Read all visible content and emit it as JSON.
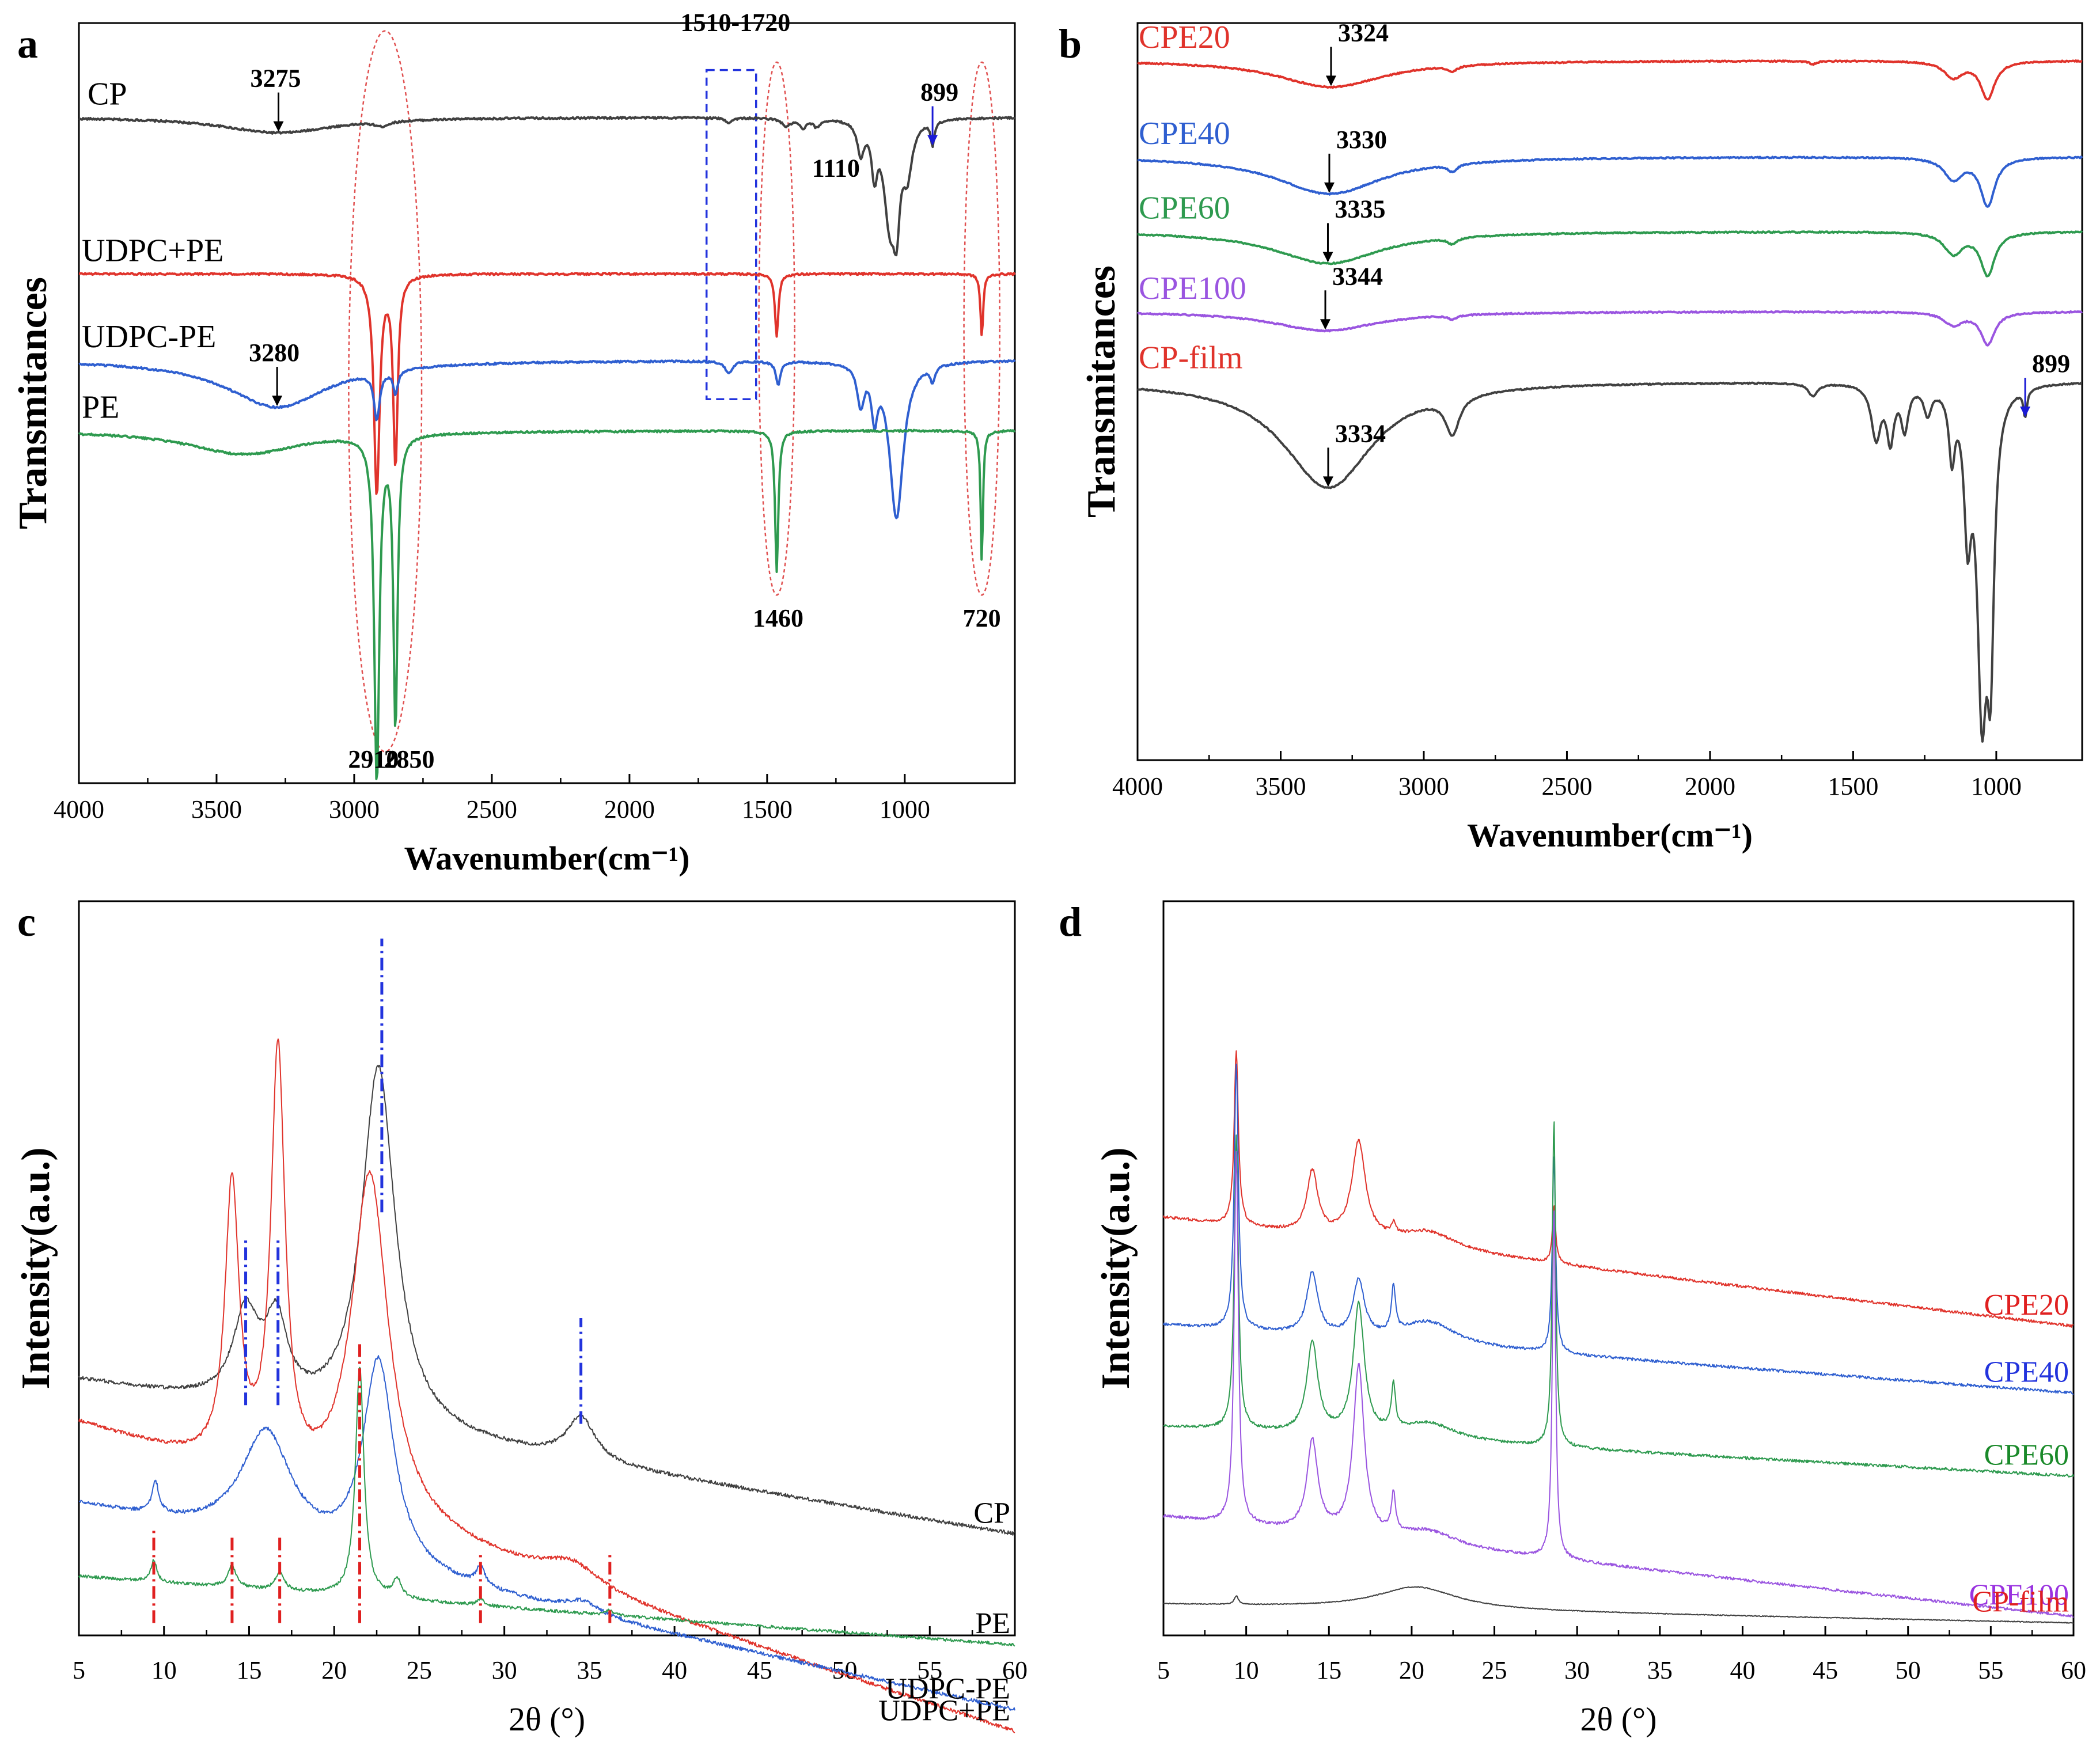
{
  "figure": {
    "panel_labels": [
      "a",
      "b",
      "c",
      "d"
    ]
  },
  "chart_data": [
    {
      "panel": "a",
      "type": "line",
      "xlabel": "Wavenumber(cm⁻¹)",
      "ylabel": "Transmitances",
      "xlim": [
        4000,
        600
      ],
      "xticks": [
        4000,
        3500,
        3000,
        2500,
        2000,
        1500,
        1000
      ],
      "ylim": [
        -0.25,
        4.6
      ],
      "series": [
        {
          "name": "CP",
          "color": "#404040",
          "baseline": 4.0,
          "bands": [
            [
              3275,
              500,
              0.1
            ],
            [
              2900,
              60,
              0.03
            ],
            [
              1640,
              30,
              0.03
            ],
            [
              1430,
              40,
              0.05
            ],
            [
              1370,
              30,
              0.06
            ],
            [
              1320,
              30,
              0.05
            ],
            [
              1160,
              30,
              0.2
            ],
            [
              1110,
              25,
              0.3
            ],
            [
              1055,
              50,
              0.6
            ],
            [
              1030,
              30,
              0.5
            ],
            [
              990,
              40,
              0.3
            ],
            [
              899,
              15,
              0.15
            ]
          ]
        },
        {
          "name": "UDPC+PE",
          "color": "#e0332b",
          "baseline": 3.0,
          "bands": [
            [
              2918,
              25,
              1.4
            ],
            [
              2850,
              20,
              1.2
            ],
            [
              1465,
              15,
              0.4
            ],
            [
              720,
              12,
              0.4
            ]
          ]
        },
        {
          "name": "UDPC-PE",
          "color": "#2f5fd0",
          "baseline": 2.45,
          "bands": [
            [
              3280,
              450,
              0.3
            ],
            [
              2918,
              25,
              0.3
            ],
            [
              2850,
              20,
              0.15
            ],
            [
              1640,
              30,
              0.08
            ],
            [
              1460,
              20,
              0.15
            ],
            [
              1160,
              30,
              0.25
            ],
            [
              1110,
              25,
              0.3
            ],
            [
              1030,
              60,
              1.0
            ],
            [
              899,
              20,
              0.1
            ]
          ]
        },
        {
          "name": "PE",
          "color": "#2e9a4f",
          "baseline": 2.0,
          "bands": [
            [
              3400,
              500,
              0.15
            ],
            [
              2918,
              22,
              2.2
            ],
            [
              2850,
              18,
              1.85
            ],
            [
              1465,
              14,
              0.9
            ],
            [
              720,
              10,
              0.85
            ]
          ]
        }
      ],
      "annotations": [
        {
          "text": "3275",
          "x": 3275,
          "series": "CP",
          "arrow": "down",
          "color": "#000000"
        },
        {
          "text": "3280",
          "x": 3280,
          "series": "UDPC-PE",
          "arrow": "down",
          "color": "#000000"
        },
        {
          "text": "2910",
          "x": 2930,
          "y": -0.15,
          "arrow": "none",
          "color": "#000000"
        },
        {
          "text": "2850",
          "x": 2800,
          "y": -0.15,
          "arrow": "none",
          "color": "#000000"
        },
        {
          "text": "1510-1720",
          "x": 1615,
          "y": 4.55,
          "arrow": "none",
          "color": "#000000"
        },
        {
          "text": "1460",
          "x": 1460,
          "y": 0.75,
          "arrow": "none",
          "color": "#000000"
        },
        {
          "text": "1110",
          "x": 1250,
          "y": 3.62,
          "arrow": "none",
          "color": "#000000"
        },
        {
          "text": "899",
          "x": 899,
          "series": "CP",
          "arrow": "down",
          "color": "#1a1ad6"
        },
        {
          "text": "720",
          "x": 720,
          "y": 0.75,
          "arrow": "none",
          "color": "#000000"
        }
      ],
      "regions": [
        {
          "kind": "dashed-ellipse",
          "x1": 3020,
          "x2": 2755,
          "y1": -0.05,
          "y2": 4.55,
          "color": "#e05050"
        },
        {
          "kind": "dashed-ellipse",
          "x1": 1530,
          "x2": 1400,
          "y1": 0.95,
          "y2": 4.35,
          "color": "#e05050"
        },
        {
          "kind": "dashed-ellipse",
          "x1": 785,
          "x2": 655,
          "y1": 0.95,
          "y2": 4.35,
          "color": "#e05050"
        },
        {
          "kind": "dashed-rect",
          "x1": 1720,
          "x2": 1540,
          "y1": 2.2,
          "y2": 4.3,
          "color": "#2233dd"
        }
      ]
    },
    {
      "panel": "b",
      "type": "line",
      "xlabel": "Wavenumber(cm⁻¹)",
      "ylabel": "Transmitances",
      "xlim": [
        4000,
        700
      ],
      "xticks": [
        4000,
        3500,
        3000,
        2500,
        2000,
        1500,
        1000
      ],
      "ylim": [
        -0.2,
        6.7
      ],
      "series": [
        {
          "name": "CPE20",
          "color": "#e0332b",
          "baseline": 6.35,
          "bands": [
            [
              3324,
              450,
              0.25
            ],
            [
              2900,
              40,
              0.05
            ],
            [
              1640,
              30,
              0.03
            ],
            [
              1150,
              80,
              0.15
            ],
            [
              1030,
              60,
              0.35
            ]
          ]
        },
        {
          "name": "CPE40",
          "color": "#2f5fd0",
          "baseline": 5.45,
          "bands": [
            [
              3330,
              450,
              0.35
            ],
            [
              2900,
              40,
              0.07
            ],
            [
              1150,
              80,
              0.2
            ],
            [
              1030,
              60,
              0.45
            ]
          ]
        },
        {
          "name": "CPE60",
          "color": "#2e9a4f",
          "baseline": 4.75,
          "bands": [
            [
              3335,
              450,
              0.3
            ],
            [
              2900,
              40,
              0.06
            ],
            [
              1150,
              80,
              0.2
            ],
            [
              1030,
              60,
              0.4
            ]
          ]
        },
        {
          "name": "CPE100",
          "color": "#9a55e0",
          "baseline": 4.0,
          "bands": [
            [
              3344,
              450,
              0.18
            ],
            [
              2900,
              40,
              0.04
            ],
            [
              1150,
              80,
              0.12
            ],
            [
              1030,
              60,
              0.3
            ]
          ]
        },
        {
          "name": "CP-film",
          "color": "#404040",
          "baseline": 3.35,
          "bands": [
            [
              3334,
              380,
              1.0
            ],
            [
              2900,
              60,
              0.35
            ],
            [
              1640,
              40,
              0.12
            ],
            [
              1420,
              40,
              0.5
            ],
            [
              1370,
              30,
              0.5
            ],
            [
              1320,
              30,
              0.4
            ],
            [
              1240,
              30,
              0.25
            ],
            [
              1155,
              25,
              0.6
            ],
            [
              1100,
              30,
              1.2
            ],
            [
              1050,
              40,
              2.8
            ],
            [
              1020,
              30,
              2.2
            ],
            [
              899,
              15,
              0.25
            ]
          ]
        }
      ],
      "annotations": [
        {
          "text": "3324",
          "x": 3324,
          "series": "CPE20",
          "arrow": "down",
          "color": "#000000"
        },
        {
          "text": "3330",
          "x": 3330,
          "series": "CPE40",
          "arrow": "down",
          "color": "#000000"
        },
        {
          "text": "3335",
          "x": 3335,
          "series": "CPE60",
          "arrow": "down",
          "color": "#000000"
        },
        {
          "text": "3344",
          "x": 3344,
          "series": "CPE100",
          "arrow": "down",
          "color": "#000000"
        },
        {
          "text": "3334",
          "x": 3334,
          "series": "CP-film",
          "arrow": "down",
          "color": "#000000"
        },
        {
          "text": "899",
          "x": 899,
          "series": "CP-film",
          "arrow": "down",
          "color": "#1a1ad6"
        }
      ],
      "regions": []
    },
    {
      "panel": "c",
      "type": "line",
      "xlabel": "2θ (°)",
      "ylabel": "Intensity(a.u.)",
      "xlim": [
        5,
        60
      ],
      "xticks": [
        5,
        10,
        15,
        20,
        25,
        30,
        35,
        40,
        45,
        50,
        55,
        60
      ],
      "ylim": [
        -0.8,
        11.0
      ],
      "series": [
        {
          "name": "CP",
          "color": "#404040",
          "baseline": 3.3,
          "slope": -0.0045,
          "noise": 0.06,
          "peaks": [
            [
              14.8,
              0.9,
              1.4
            ],
            [
              16.6,
              0.8,
              1.3
            ],
            [
              22.6,
              1.2,
              5.8
            ],
            [
              34.5,
              1.0,
              0.7
            ]
          ]
        },
        {
          "name": "UDPC+PE",
          "color": "#e0332b",
          "baseline": 2.6,
          "slope": -0.009,
          "noise": 0.06,
          "peaks": [
            [
              14.0,
              0.5,
              4.5
            ],
            [
              16.7,
              0.5,
              6.8
            ],
            [
              22.1,
              1.3,
              5.5
            ],
            [
              34.0,
              2.0,
              0.35
            ]
          ]
        },
        {
          "name": "UDPC-PE",
          "color": "#2f5fd0",
          "baseline": 1.3,
          "slope": -0.006,
          "noise": 0.06,
          "peaks": [
            [
              9.5,
              0.25,
              0.5
            ],
            [
              16.0,
              1.8,
              1.8
            ],
            [
              22.6,
              1.1,
              3.3
            ],
            [
              28.6,
              0.3,
              0.3
            ],
            [
              34.6,
              1.2,
              0.2
            ]
          ]
        },
        {
          "name": "PE",
          "color": "#2e9a4f",
          "baseline": 0.15,
          "slope": -0.002,
          "noise": 0.05,
          "peaks": [
            [
              9.4,
              0.2,
              0.35
            ],
            [
              14.0,
              0.3,
              0.35
            ],
            [
              16.8,
              0.3,
              0.3
            ],
            [
              21.5,
              0.3,
              3.7
            ],
            [
              23.7,
              0.3,
              0.3
            ],
            [
              28.6,
              0.25,
              0.1
            ],
            [
              36.2,
              0.25,
              0.08
            ]
          ]
        }
      ],
      "markers": [
        {
          "x": 14.8,
          "y1": 2.9,
          "y2": 5.6,
          "color": "#2233dd"
        },
        {
          "x": 16.7,
          "y1": 2.9,
          "y2": 5.6,
          "color": "#2233dd"
        },
        {
          "x": 22.8,
          "y1": 6.0,
          "y2": 10.4,
          "color": "#2233dd"
        },
        {
          "x": 34.5,
          "y1": 2.6,
          "y2": 4.3,
          "color": "#2233dd"
        },
        {
          "x": 9.4,
          "y1": -0.6,
          "y2": 0.9,
          "color": "#e02020"
        },
        {
          "x": 14.0,
          "y1": -0.6,
          "y2": 0.8,
          "color": "#e02020"
        },
        {
          "x": 16.8,
          "y1": -0.6,
          "y2": 0.8,
          "color": "#e02020"
        },
        {
          "x": 21.5,
          "y1": -0.6,
          "y2": 3.9,
          "color": "#e02020"
        },
        {
          "x": 28.6,
          "y1": -0.6,
          "y2": 0.5,
          "color": "#e02020"
        },
        {
          "x": 36.2,
          "y1": -0.6,
          "y2": 0.5,
          "color": "#e02020"
        }
      ],
      "label_side": "right",
      "label_colors": [
        "#000000",
        "#000000",
        "#000000",
        "#000000"
      ]
    },
    {
      "panel": "d",
      "type": "line",
      "xlabel": "2θ (°)",
      "ylabel": "Intensity(a.u.)",
      "xlim": [
        5,
        60
      ],
      "xticks": [
        5,
        10,
        15,
        20,
        25,
        30,
        35,
        40,
        45,
        50,
        55,
        60
      ],
      "ylim": [
        -0.4,
        12.6
      ],
      "series": [
        {
          "name": "CPE20",
          "color": "#e0332b",
          "baseline": 7.0,
          "slope": -0.0035,
          "noise": 0.05,
          "peaks": [
            [
              9.4,
              0.15,
              3.1
            ],
            [
              14.0,
              0.4,
              1.1
            ],
            [
              16.8,
              0.5,
              1.7
            ],
            [
              18.9,
              0.15,
              0.2
            ],
            [
              21.0,
              2.0,
              0.3
            ],
            [
              28.6,
              0.12,
              1.0
            ]
          ]
        },
        {
          "name": "CPE40",
          "color": "#2f5fd0",
          "baseline": 5.1,
          "slope": -0.0022,
          "noise": 0.05,
          "peaks": [
            [
              9.4,
              0.15,
              4.7
            ],
            [
              14.0,
              0.4,
              1.1
            ],
            [
              16.8,
              0.4,
              1.0
            ],
            [
              18.9,
              0.15,
              0.8
            ],
            [
              21.0,
              2.0,
              0.4
            ],
            [
              28.6,
              0.12,
              3.5
            ]
          ]
        },
        {
          "name": "CPE60",
          "color": "#2e9a4f",
          "baseline": 3.3,
          "slope": -0.0016,
          "noise": 0.05,
          "peaks": [
            [
              9.4,
              0.15,
              5.2
            ],
            [
              14.0,
              0.4,
              1.6
            ],
            [
              16.8,
              0.4,
              2.3
            ],
            [
              18.9,
              0.15,
              0.8
            ],
            [
              21.0,
              2.0,
              0.3
            ],
            [
              28.6,
              0.12,
              5.8
            ]
          ]
        },
        {
          "name": "CPE100",
          "color": "#9a55e0",
          "baseline": 1.7,
          "slope": -0.0032,
          "noise": 0.05,
          "peaks": [
            [
              9.4,
              0.15,
              6.6
            ],
            [
              14.0,
              0.4,
              1.6
            ],
            [
              16.8,
              0.4,
              3.0
            ],
            [
              18.9,
              0.15,
              0.7
            ],
            [
              21.0,
              2.0,
              0.25
            ],
            [
              28.6,
              0.12,
              6.2
            ]
          ]
        },
        {
          "name": "CP-film",
          "color": "#404040",
          "baseline": 0.15,
          "slope": -0.0006,
          "noise": 0.015,
          "peaks": [
            [
              9.4,
              0.15,
              0.15
            ],
            [
              20.3,
              3.0,
              0.4
            ]
          ]
        }
      ],
      "markers": [],
      "label_side": "right",
      "label_colors": [
        "#e02020",
        "#2233dd",
        "#1a8a2a",
        "#9a33e0",
        "#e02020"
      ]
    }
  ]
}
